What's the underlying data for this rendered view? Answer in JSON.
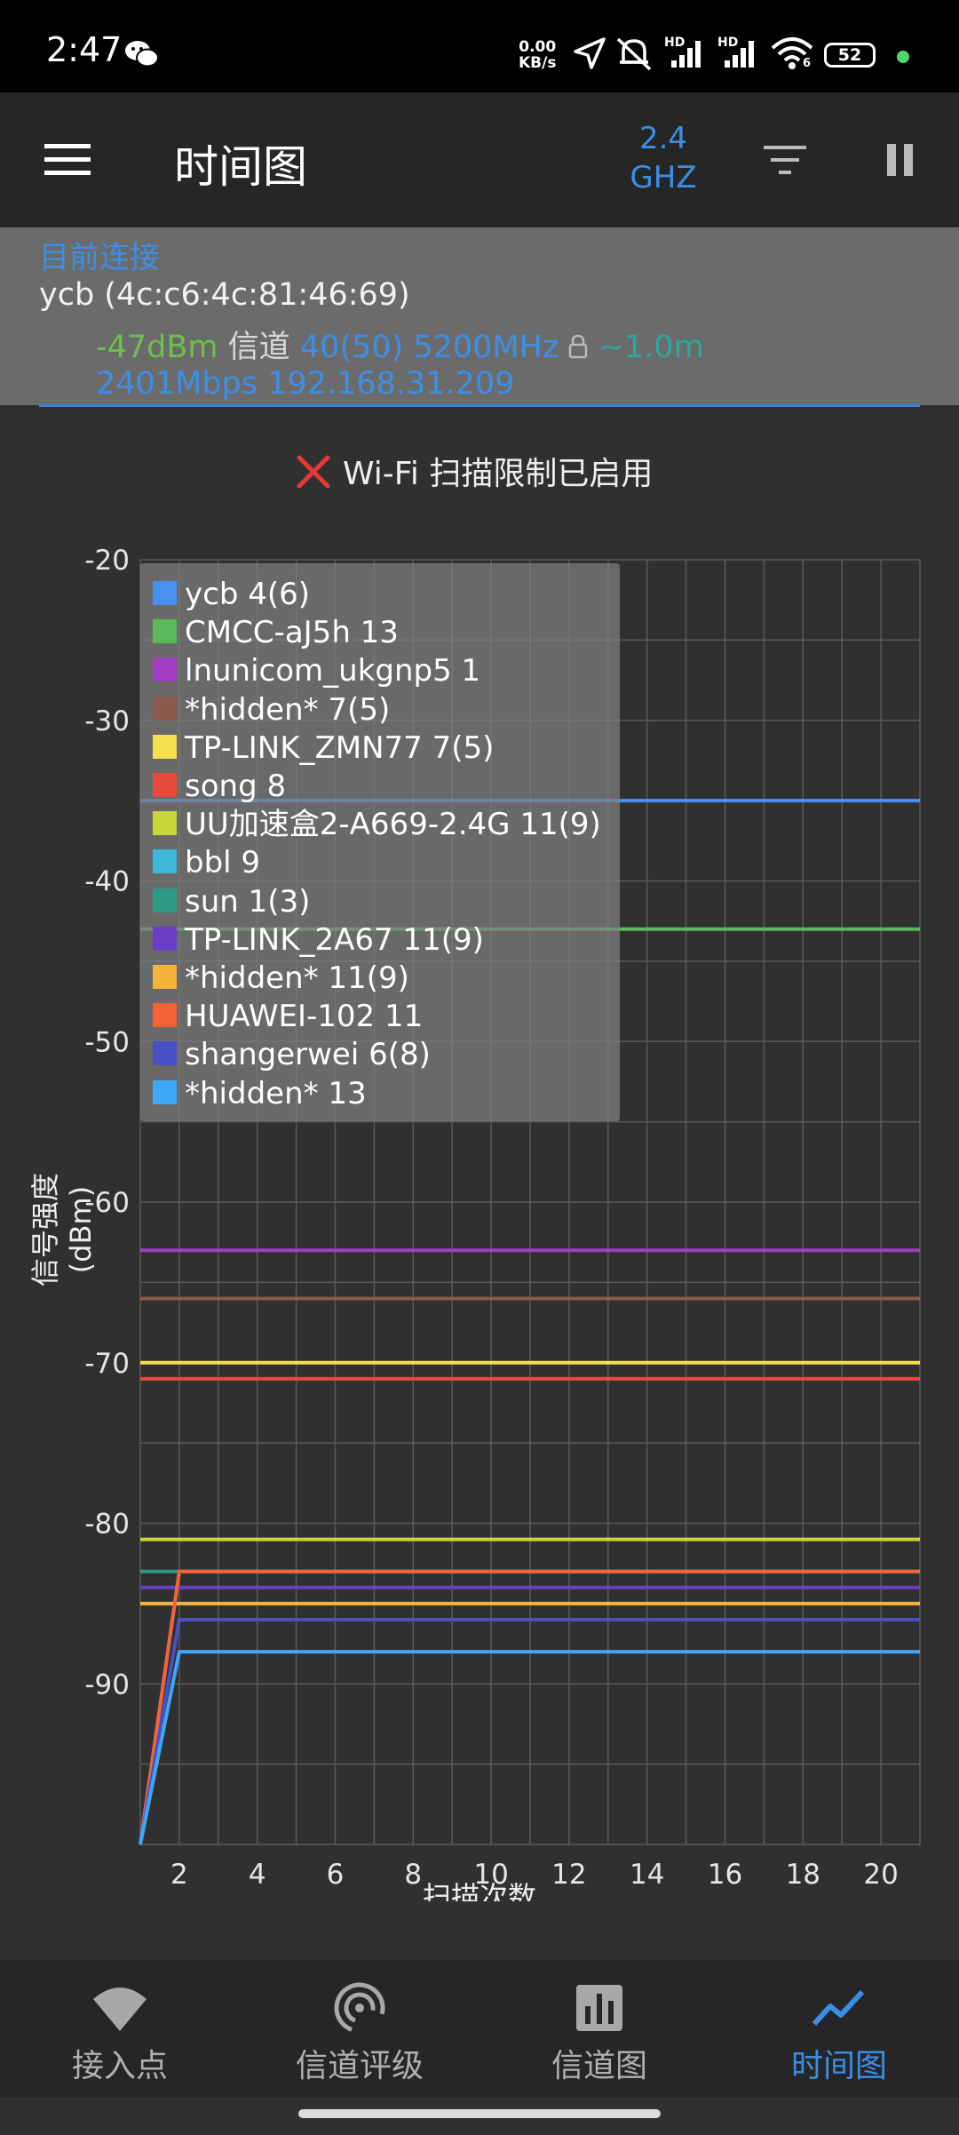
{
  "status_bar": {
    "time": "2:47",
    "net_speed_value": "0.00",
    "net_speed_unit": "KB/s",
    "hd1": "HD",
    "hd2": "HD",
    "wifi_badge": "6",
    "battery": "52",
    "battery_dot_color": "#4cd964"
  },
  "app_bar": {
    "title": "时间图",
    "band_line1": "2.4",
    "band_line2": "GHZ",
    "menu_icon": "hamburger-menu-icon",
    "filter_icon": "filter-icon",
    "pause_icon": "pause-icon"
  },
  "connection": {
    "header": "目前连接",
    "ssid": "ycb (4c:c6:4c:81:46:69)",
    "signal": "-47dBm",
    "channel_label": "信道",
    "channel": "40(50)",
    "frequency": "5200MHz",
    "distance": "~1.0m",
    "speed_ip": "2401Mbps 192.168.31.209"
  },
  "warning": {
    "text": "Wi-Fi 扫描限制已启用"
  },
  "chart_data": {
    "type": "line",
    "xlabel": "扫描次数",
    "ylabel": "信号强度 (dBm)",
    "xlim": [
      1,
      21
    ],
    "ylim": [
      -100,
      -20
    ],
    "x_ticks": [
      2,
      4,
      6,
      8,
      10,
      12,
      14,
      16,
      18,
      20
    ],
    "y_ticks": [
      -20,
      -30,
      -40,
      -50,
      -60,
      -70,
      -80,
      -90
    ],
    "grid": true,
    "legend_position": "top-left",
    "series": [
      {
        "name": "ycb 4(6)",
        "color": "#4a90f0",
        "points": [
          [
            1,
            -35
          ],
          [
            21,
            -35
          ]
        ]
      },
      {
        "name": "CMCC-aJ5h 13",
        "color": "#5cb85c",
        "points": [
          [
            1,
            -43
          ],
          [
            21,
            -43
          ]
        ]
      },
      {
        "name": "lnunicom_ukgnp5 1",
        "color": "#a23dc2",
        "points": [
          [
            1,
            -63
          ],
          [
            21,
            -63
          ]
        ]
      },
      {
        "name": "*hidden* 7(5)",
        "color": "#8a5a4c",
        "points": [
          [
            1,
            -66
          ],
          [
            21,
            -66
          ]
        ]
      },
      {
        "name": "TP-LINK_ZMN77 7(5)",
        "color": "#f5e050",
        "points": [
          [
            1,
            -70
          ],
          [
            21,
            -70
          ]
        ]
      },
      {
        "name": "song 8",
        "color": "#e84a3a",
        "points": [
          [
            1,
            -71
          ],
          [
            21,
            -71
          ]
        ]
      },
      {
        "name": "UU加速盒2-A669-2.4G 11(9)",
        "color": "#c8d63c",
        "points": [
          [
            1,
            -81
          ],
          [
            21,
            -81
          ]
        ]
      },
      {
        "name": "bbl 9",
        "color": "#3fb7d8",
        "points": [
          [
            1,
            -100
          ],
          [
            2,
            -83
          ],
          [
            21,
            -83
          ]
        ]
      },
      {
        "name": "sun 1(3)",
        "color": "#2e9a86",
        "points": [
          [
            1,
            -83
          ],
          [
            2,
            -83
          ]
        ]
      },
      {
        "name": "TP-LINK_2A67 11(9)",
        "color": "#6a3fc8",
        "points": [
          [
            1,
            -84
          ],
          [
            21,
            -84
          ]
        ]
      },
      {
        "name": "*hidden* 11(9)",
        "color": "#f5b53c",
        "points": [
          [
            1,
            -85
          ],
          [
            21,
            -85
          ]
        ]
      },
      {
        "name": "HUAWEI-102 11",
        "color": "#f5623a",
        "points": [
          [
            1,
            -100
          ],
          [
            2,
            -83
          ],
          [
            21,
            -83
          ]
        ]
      },
      {
        "name": "shangerwei 6(8)",
        "color": "#4a4fc8",
        "points": [
          [
            1,
            -100
          ],
          [
            2,
            -86
          ],
          [
            21,
            -86
          ]
        ]
      },
      {
        "name": "*hidden* 13",
        "color": "#3da8f5",
        "points": [
          [
            1,
            -100
          ],
          [
            2,
            -88
          ],
          [
            21,
            -88
          ]
        ]
      }
    ]
  },
  "bottom_nav": {
    "items": [
      {
        "label": "接入点",
        "icon": "access-point-icon"
      },
      {
        "label": "信道评级",
        "icon": "channel-rating-icon"
      },
      {
        "label": "信道图",
        "icon": "channel-graph-icon"
      },
      {
        "label": "时间图",
        "icon": "time-graph-icon"
      }
    ],
    "active_index": 3,
    "active_color": "#3b8ee8"
  }
}
